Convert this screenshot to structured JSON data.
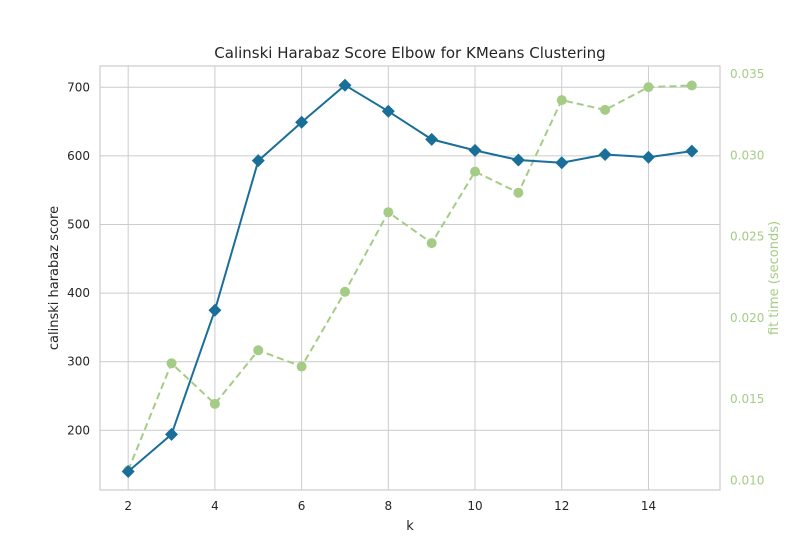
{
  "chart_data": {
    "type": "line",
    "title": "Calinski Harabaz Score Elbow for KMeans Clustering",
    "xlabel": "k",
    "ylabel": "calinski harabaz score",
    "y2label": "fit time (seconds)",
    "x": [
      2,
      3,
      4,
      5,
      6,
      7,
      8,
      9,
      10,
      11,
      12,
      13,
      14,
      15
    ],
    "xticks": [
      2,
      4,
      6,
      8,
      10,
      12,
      14
    ],
    "xlim": [
      1.35,
      15.65
    ],
    "yticks": [
      200,
      300,
      400,
      500,
      600,
      700
    ],
    "ylim": [
      113,
      731
    ],
    "y2ticks": [
      "0.010",
      "0.015",
      "0.020",
      "0.025",
      "0.030",
      "0.035"
    ],
    "y2lim": [
      0.0094,
      0.0355
    ],
    "grid": true,
    "series": [
      {
        "axis": "left",
        "color": "#1a6f99",
        "line_style": "solid",
        "marker": "diamond",
        "values": [
          140,
          194,
          375,
          593,
          649,
          703,
          665,
          624,
          608,
          594,
          590,
          602,
          598,
          607
        ]
      },
      {
        "axis": "right",
        "color": "#a5cc86",
        "line_style": "dashed",
        "marker": "circle",
        "values": [
          0.0106,
          0.0172,
          0.0147,
          0.018,
          0.017,
          0.0216,
          0.0265,
          0.0246,
          0.029,
          0.0277,
          0.0334,
          0.0328,
          0.0342,
          0.0343
        ]
      }
    ]
  }
}
